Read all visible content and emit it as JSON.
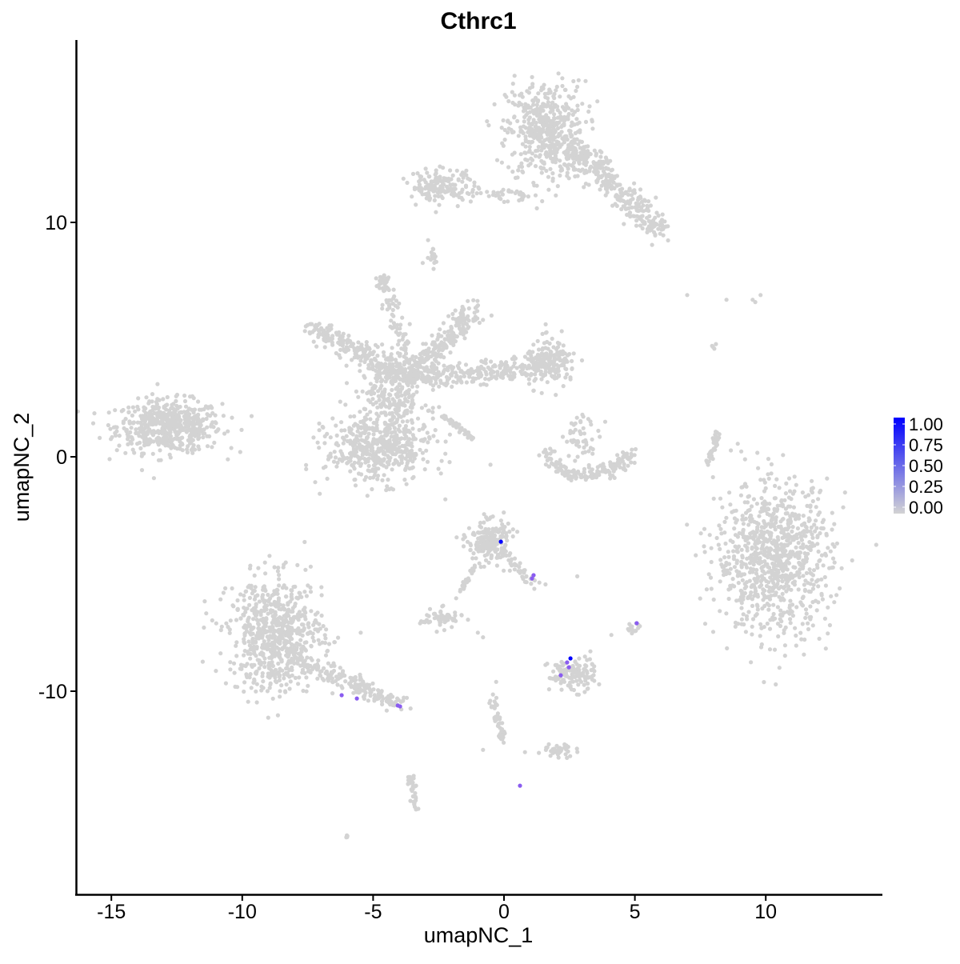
{
  "chart_data": {
    "type": "scatter",
    "title": "Cthrc1",
    "xlabel": "umapNC_1",
    "ylabel": "umapNC_2",
    "xlim": [
      -16.4,
      14.3
    ],
    "ylim": [
      -18.6,
      17.9
    ],
    "xticks": [
      -15,
      -10,
      -5,
      0,
      5,
      10
    ],
    "yticks": [
      -10,
      0,
      10
    ],
    "grid": false,
    "legend": {
      "position": "right",
      "type": "colorbar",
      "ticks": [
        "1.00",
        "0.75",
        "0.50",
        "0.25",
        "0.00"
      ],
      "range": [
        0,
        1
      ],
      "low_color": "#D3D3D3",
      "high_color": "#0000FF"
    },
    "background_points_value": 0,
    "background_clusters": [
      {
        "kind": "blob",
        "center": [
          -12.8,
          1.3
        ],
        "sd": [
          1.0,
          0.55
        ],
        "n": 550
      },
      {
        "kind": "blob",
        "center": [
          1.6,
          13.9
        ],
        "sd": [
          0.75,
          1.05
        ],
        "n": 500
      },
      {
        "kind": "line",
        "from": [
          2.6,
          13.2
        ],
        "to": [
          6.0,
          9.6
        ],
        "width": 0.55,
        "n": 320
      },
      {
        "kind": "line",
        "from": [
          -3.4,
          11.4
        ],
        "to": [
          0.9,
          11.1
        ],
        "width": 0.25,
        "n": 90
      },
      {
        "kind": "blob",
        "center": [
          -2.4,
          11.6
        ],
        "sd": [
          0.6,
          0.35
        ],
        "n": 120
      },
      {
        "kind": "blob",
        "center": [
          -2.75,
          8.8
        ],
        "sd": [
          0.15,
          0.3
        ],
        "n": 15
      },
      {
        "kind": "blob",
        "center": [
          -4.6,
          7.4
        ],
        "sd": [
          0.15,
          0.25
        ],
        "n": 30
      },
      {
        "kind": "line",
        "from": [
          -3.6,
          3.3
        ],
        "to": [
          -7.3,
          5.6
        ],
        "width": 0.5,
        "n": 250
      },
      {
        "kind": "line",
        "from": [
          -3.6,
          3.3
        ],
        "to": [
          -4.5,
          7.2
        ],
        "width": 0.3,
        "n": 80
      },
      {
        "kind": "line",
        "from": [
          -3.6,
          3.3
        ],
        "to": [
          -1.2,
          6.3
        ],
        "width": 0.5,
        "n": 220
      },
      {
        "kind": "line",
        "from": [
          -3.6,
          3.3
        ],
        "to": [
          2.2,
          4.0
        ],
        "width": 0.5,
        "n": 260
      },
      {
        "kind": "blob",
        "center": [
          1.8,
          4.0
        ],
        "sd": [
          0.5,
          0.5
        ],
        "n": 150
      },
      {
        "kind": "blob",
        "center": [
          -4.3,
          2.5
        ],
        "sd": [
          0.7,
          0.9
        ],
        "n": 250
      },
      {
        "kind": "blob",
        "center": [
          -4.8,
          0.3
        ],
        "sd": [
          1.0,
          0.7
        ],
        "n": 450
      },
      {
        "kind": "line",
        "from": [
          -2.5,
          1.9
        ],
        "to": [
          -1.2,
          0.8
        ],
        "width": 0.1,
        "n": 40
      },
      {
        "kind": "arc",
        "center": [
          3.2,
          0.6
        ],
        "radius": 1.5,
        "n": 160
      },
      {
        "kind": "blob",
        "center": [
          3.0,
          0.8
        ],
        "sd": [
          0.35,
          0.5
        ],
        "n": 50
      },
      {
        "kind": "line",
        "from": [
          8.2,
          1.1
        ],
        "to": [
          7.8,
          -0.3
        ],
        "width": 0.12,
        "n": 40
      },
      {
        "kind": "blob",
        "center": [
          10.3,
          -4.3
        ],
        "sd": [
          1.1,
          1.6
        ],
        "n": 900
      },
      {
        "kind": "blob",
        "center": [
          -8.7,
          -7.6
        ],
        "sd": [
          0.9,
          1.2
        ],
        "n": 700
      },
      {
        "kind": "line",
        "from": [
          -7.8,
          -8.7
        ],
        "to": [
          -3.9,
          -10.6
        ],
        "width": 0.35,
        "n": 180
      },
      {
        "kind": "blob",
        "center": [
          -0.6,
          -3.6
        ],
        "sd": [
          0.4,
          0.45
        ],
        "n": 200
      },
      {
        "kind": "line",
        "from": [
          -0.2,
          -3.9
        ],
        "to": [
          1.2,
          -5.5
        ],
        "width": 0.25,
        "n": 50
      },
      {
        "kind": "line",
        "from": [
          -1.0,
          -4.5
        ],
        "to": [
          -1.8,
          -6.0
        ],
        "width": 0.1,
        "n": 20
      },
      {
        "kind": "blob",
        "center": [
          -2.4,
          -6.9
        ],
        "sd": [
          0.4,
          0.2
        ],
        "n": 60
      },
      {
        "kind": "blob",
        "center": [
          2.6,
          -9.3
        ],
        "sd": [
          0.45,
          0.35
        ],
        "n": 120
      },
      {
        "kind": "line",
        "from": [
          -0.5,
          -10.2
        ],
        "to": [
          0.0,
          -12.1
        ],
        "width": 0.15,
        "n": 45
      },
      {
        "kind": "blob",
        "center": [
          2.2,
          -12.5
        ],
        "sd": [
          0.35,
          0.15
        ],
        "n": 40
      },
      {
        "kind": "line",
        "from": [
          -3.6,
          -13.6
        ],
        "to": [
          -3.3,
          -15.0
        ],
        "width": 0.15,
        "n": 40
      },
      {
        "kind": "blob",
        "center": [
          5.0,
          -7.3
        ],
        "sd": [
          0.12,
          0.15
        ],
        "n": 15
      },
      {
        "kind": "blob",
        "center": [
          -6.0,
          -16.2
        ],
        "sd": [
          0.05,
          0.05
        ],
        "n": 4
      },
      {
        "kind": "blob",
        "center": [
          8.0,
          4.7
        ],
        "sd": [
          0.05,
          0.15
        ],
        "n": 4
      },
      {
        "kind": "points",
        "xy": [
          [
            7.0,
            6.9
          ],
          [
            8.5,
            6.7
          ],
          [
            9.5,
            6.7
          ],
          [
            9.8,
            6.9
          ],
          [
            9.6,
            6.6
          ],
          [
            -1.0,
            -7.5
          ],
          [
            -0.8,
            -7.7
          ],
          [
            -0.3,
            -9.6
          ],
          [
            -0.8,
            -12.5
          ],
          [
            0.8,
            -12.6
          ],
          [
            3.3,
            -8.3
          ],
          [
            2.8,
            -5.1
          ],
          [
            -1.2,
            -4.8
          ],
          [
            4.1,
            -7.6
          ]
        ]
      }
    ],
    "expressing_points": [
      {
        "x": -0.12,
        "y": -3.62,
        "value": 1.0
      },
      {
        "x": 1.13,
        "y": -5.05,
        "value": 0.5
      },
      {
        "x": 1.07,
        "y": -5.19,
        "value": 0.5
      },
      {
        "x": 2.54,
        "y": -8.6,
        "value": 1.0
      },
      {
        "x": 2.41,
        "y": -8.77,
        "value": 0.5
      },
      {
        "x": 2.48,
        "y": -8.98,
        "value": 0.5
      },
      {
        "x": 2.17,
        "y": -9.32,
        "value": 0.5
      },
      {
        "x": 5.07,
        "y": -7.1,
        "value": 0.5
      },
      {
        "x": -6.2,
        "y": -10.17,
        "value": 0.5
      },
      {
        "x": -5.62,
        "y": -10.31,
        "value": 0.5
      },
      {
        "x": -4.06,
        "y": -10.61,
        "value": 0.5
      },
      {
        "x": -3.97,
        "y": -10.65,
        "value": 0.5
      },
      {
        "x": 0.61,
        "y": -14.03,
        "value": 0.5
      }
    ]
  }
}
